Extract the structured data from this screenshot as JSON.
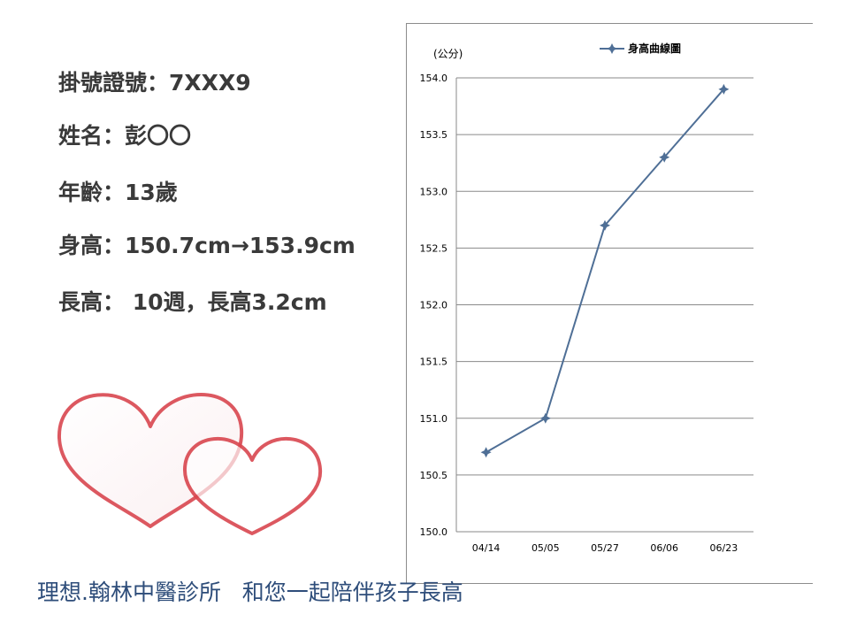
{
  "info": {
    "registration": "掛號證號：7XXX9",
    "name": "姓名：彭〇〇",
    "age": "年齡：13歲",
    "height": "身高：150.7cm→153.9cm",
    "growth": "長高： 10週，長高3.2cm"
  },
  "footer": "理想.翰林中醫診所   和您一起陪伴孩子長高",
  "colors": {
    "series": "#4f6f96",
    "text": "#3a3a3a",
    "footer": "#2e4d7a",
    "heart": "#d9474f"
  },
  "chart_data": {
    "type": "line",
    "unit_label": "(公分)",
    "categories": [
      "04/14",
      "05/05",
      "05/27",
      "06/06",
      "06/23"
    ],
    "series": [
      {
        "name": "身高曲線圖",
        "values": [
          150.7,
          151.0,
          152.7,
          153.3,
          153.9
        ]
      }
    ],
    "ylim": [
      150.0,
      154.0
    ],
    "yticks": [
      "150.0",
      "150.5",
      "151.0",
      "151.5",
      "152.0",
      "152.5",
      "153.0",
      "153.5",
      "154.0"
    ],
    "grid": true,
    "legend": "top-center"
  }
}
